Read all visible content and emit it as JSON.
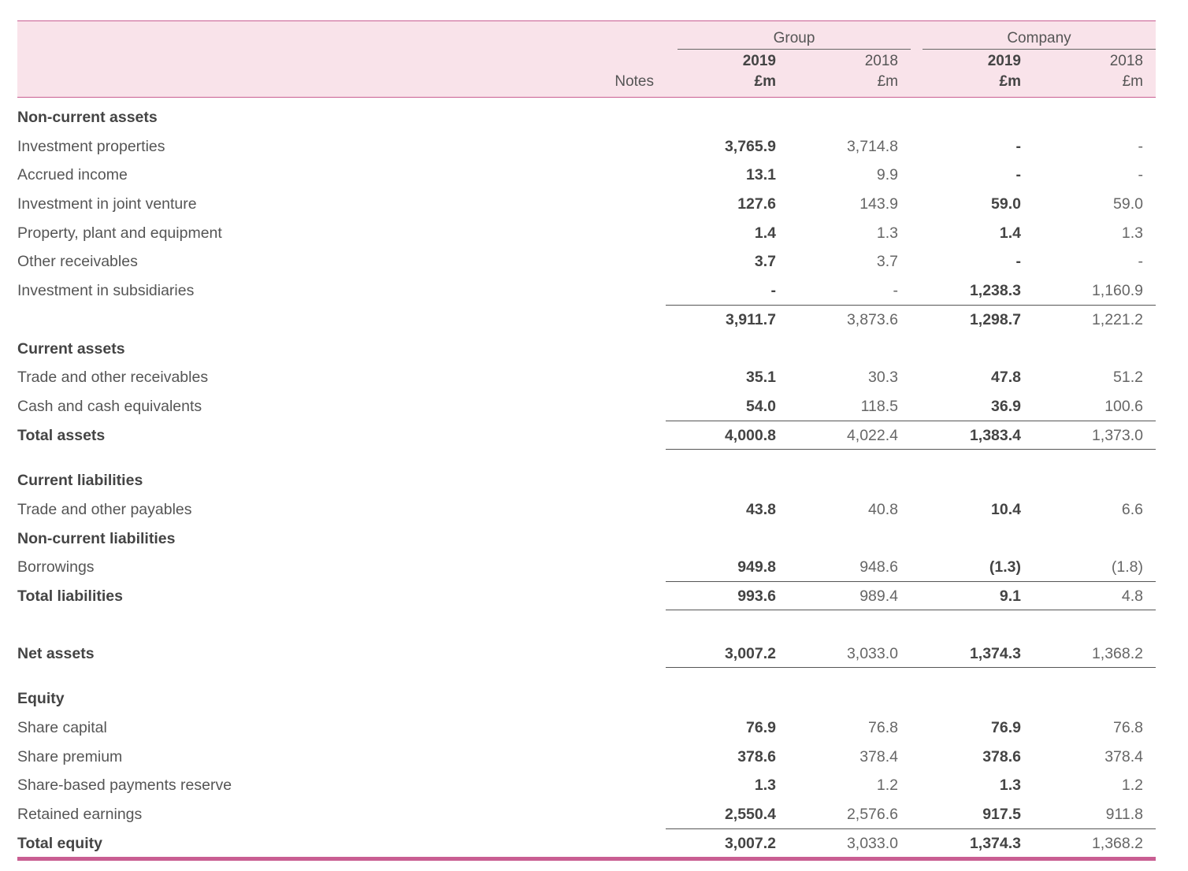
{
  "header": {
    "group": "Group",
    "company": "Company",
    "notes": "Notes",
    "year_current": "2019",
    "year_prior": "2018",
    "unit": "£m"
  },
  "rows": [
    {
      "label": "Non-current assets",
      "bold": true,
      "g19": "",
      "g18": "",
      "c19": "",
      "c18": ""
    },
    {
      "label": "Investment properties",
      "bold": false,
      "g19": "3,765.9",
      "g18": "3,714.8",
      "c19": "-",
      "c18": "-"
    },
    {
      "label": "Accrued income",
      "bold": false,
      "g19": "13.1",
      "g18": "9.9",
      "c19": "-",
      "c18": "-"
    },
    {
      "label": "Investment in joint venture",
      "bold": false,
      "g19": "127.6",
      "g18": "143.9",
      "c19": "59.0",
      "c18": "59.0"
    },
    {
      "label": "Property, plant and equipment",
      "bold": false,
      "g19": "1.4",
      "g18": "1.3",
      "c19": "1.4",
      "c18": "1.3"
    },
    {
      "label": "Other receivables",
      "bold": false,
      "g19": "3.7",
      "g18": "3.7",
      "c19": "-",
      "c18": "-"
    },
    {
      "label": "Investment in subsidiaries",
      "bold": false,
      "g19": "-",
      "g18": "-",
      "c19": "1,238.3",
      "c18": "1,160.9"
    },
    {
      "label": "",
      "bold": false,
      "g19": "3,911.7",
      "g18": "3,873.6",
      "c19": "1,298.7",
      "c18": "1,221.2"
    },
    {
      "label": "Current assets",
      "bold": true,
      "g19": "",
      "g18": "",
      "c19": "",
      "c18": ""
    },
    {
      "label": "Trade and other receivables",
      "bold": false,
      "g19": "35.1",
      "g18": "30.3",
      "c19": "47.8",
      "c18": "51.2"
    },
    {
      "label": "Cash and cash equivalents",
      "bold": false,
      "g19": "54.0",
      "g18": "118.5",
      "c19": "36.9",
      "c18": "100.6"
    },
    {
      "label": "Total assets",
      "bold": true,
      "g19": "4,000.8",
      "g18": "4,022.4",
      "c19": "1,383.4",
      "c18": "1,373.0"
    },
    {
      "label": "Current liabilities",
      "bold": true,
      "g19": "",
      "g18": "",
      "c19": "",
      "c18": ""
    },
    {
      "label": "Trade and other payables",
      "bold": false,
      "g19": "43.8",
      "g18": "40.8",
      "c19": "10.4",
      "c18": "6.6"
    },
    {
      "label": "Non-current liabilities",
      "bold": true,
      "g19": "",
      "g18": "",
      "c19": "",
      "c18": ""
    },
    {
      "label": "Borrowings",
      "bold": false,
      "g19": "949.8",
      "g18": "948.6",
      "c19": "(1.3)",
      "c18": "(1.8)"
    },
    {
      "label": "Total liabilities",
      "bold": true,
      "g19": "993.6",
      "g18": "989.4",
      "c19": "9.1",
      "c18": "4.8"
    },
    {
      "label": "Net assets",
      "bold": true,
      "g19": "3,007.2",
      "g18": "3,033.0",
      "c19": "1,374.3",
      "c18": "1,368.2"
    },
    {
      "label": "Equity",
      "bold": true,
      "g19": "",
      "g18": "",
      "c19": "",
      "c18": ""
    },
    {
      "label": "Share capital",
      "bold": false,
      "g19": "76.9",
      "g18": "76.8",
      "c19": "76.9",
      "c18": "76.8"
    },
    {
      "label": "Share premium",
      "bold": false,
      "g19": "378.6",
      "g18": "378.4",
      "c19": "378.6",
      "c18": "378.4"
    },
    {
      "label": "Share-based payments reserve",
      "bold": false,
      "g19": "1.3",
      "g18": "1.2",
      "c19": "1.3",
      "c18": "1.2"
    },
    {
      "label": "Retained earnings",
      "bold": false,
      "g19": "2,550.4",
      "g18": "2,576.6",
      "c19": "917.5",
      "c18": "911.8"
    },
    {
      "label": "Total equity",
      "bold": true,
      "g19": "3,007.2",
      "g18": "3,033.0",
      "c19": "1,374.3",
      "c18": "1,368.2"
    }
  ],
  "colors": {
    "accent": "#c95e92",
    "header_bg": "#f9e3ea"
  }
}
